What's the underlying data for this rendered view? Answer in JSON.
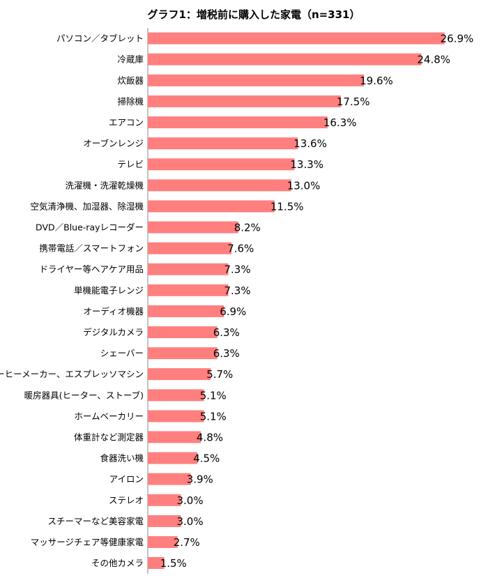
{
  "chart_data": {
    "type": "bar",
    "orientation": "horizontal",
    "title": "グラフ1：増税前に購入した家電（n=331）",
    "xlim": [
      0,
      28
    ],
    "grid": false,
    "legend": "none",
    "bar_color": "#FF7F7F",
    "value_suffix": "%",
    "categories": [
      "パソコン／タブレット",
      "冷蔵庫",
      "炊飯器",
      "掃除機",
      "エアコン",
      "オーブンレンジ",
      "テレビ",
      "洗濯機・洗濯乾燥機",
      "空気清浄機、加湿器、除湿機",
      "DVD／Blue-rayレコーダー",
      "携帯電話／スマートフォン",
      "ドライヤー等ヘアケア用品",
      "単機能電子レンジ",
      "オーディオ機器",
      "デジタルカメラ",
      "シェーバー",
      "コーヒーメーカー、エスプレッソマシン",
      "暖房器具(ヒーター、ストーブ)",
      "ホームベーカリー",
      "体重計など測定器",
      "食器洗い機",
      "アイロン",
      "ステレオ",
      "スチーマーなど美容家電",
      "マッサージチェア等健康家電",
      "その他カメラ"
    ],
    "values": [
      26.9,
      24.8,
      19.6,
      17.5,
      16.3,
      13.6,
      13.3,
      13.0,
      11.5,
      8.2,
      7.6,
      7.3,
      7.3,
      6.9,
      6.3,
      6.3,
      5.7,
      5.1,
      5.1,
      4.8,
      4.5,
      3.9,
      3.0,
      3.0,
      2.7,
      1.5
    ],
    "value_labels": [
      "26.9%",
      "24.8%",
      "19.6%",
      "17.5%",
      "16.3%",
      "13.6%",
      "13.3%",
      "13.0%",
      "11.5%",
      "8.2%",
      "7.6%",
      "7.3%",
      "7.3%",
      "6.9%",
      "6.3%",
      "6.3%",
      "5.7%",
      "5.1%",
      "5.1%",
      "4.8%",
      "4.5%",
      "3.9%",
      "3.0%",
      "3.0%",
      "2.7%",
      "1.5%"
    ]
  }
}
